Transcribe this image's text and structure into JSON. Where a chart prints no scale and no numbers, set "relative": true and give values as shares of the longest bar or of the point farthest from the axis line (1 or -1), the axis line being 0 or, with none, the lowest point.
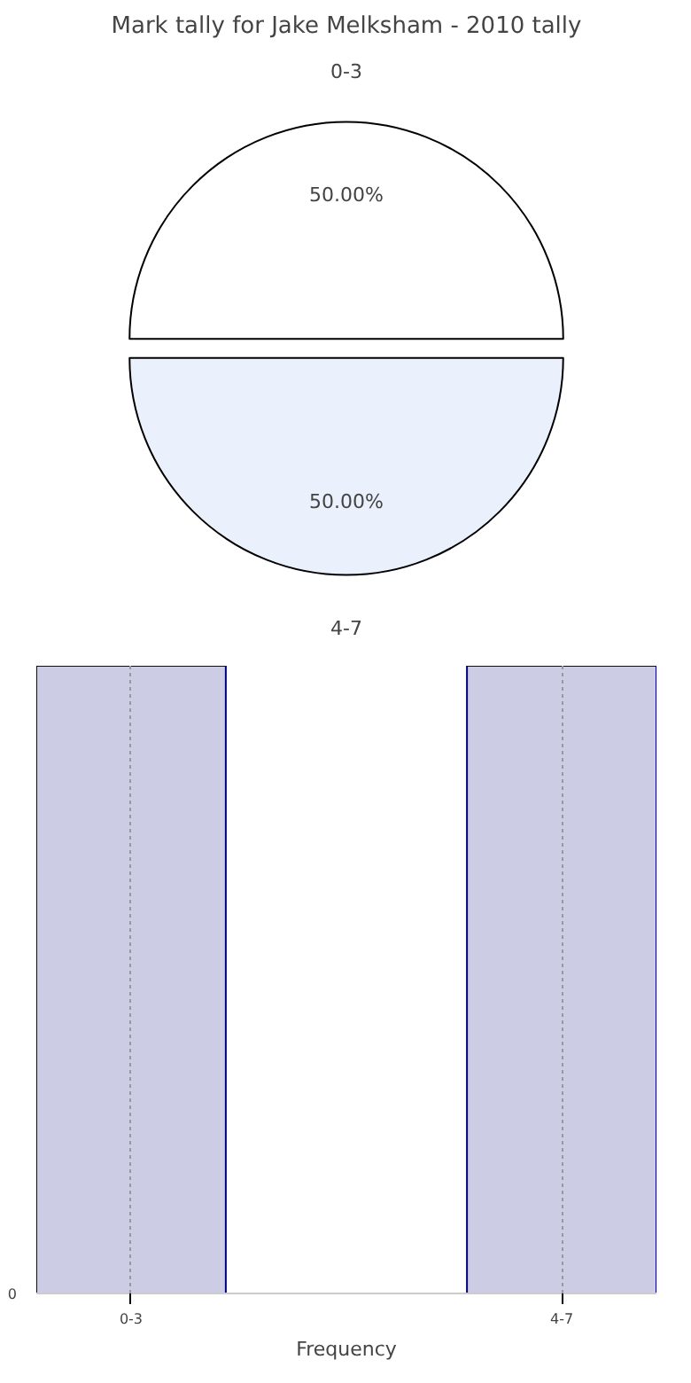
{
  "chart_data": [
    {
      "type": "pie",
      "title": "Mark tally for Jake Melksham - 2010 tally",
      "categories": [
        "0-3",
        "4-7"
      ],
      "values": [
        50,
        50
      ],
      "colors": [
        "#ffffff",
        "#eaf0fc"
      ],
      "value_labels": [
        "50.00%",
        "50.00%"
      ]
    },
    {
      "type": "bar",
      "categories": [
        "0-3",
        "4-7"
      ],
      "values": [
        1,
        1
      ],
      "color": "#cccce4",
      "relative": true,
      "xlabel": "Frequency",
      "grid": "x",
      "annotations": [
        "0"
      ]
    }
  ]
}
